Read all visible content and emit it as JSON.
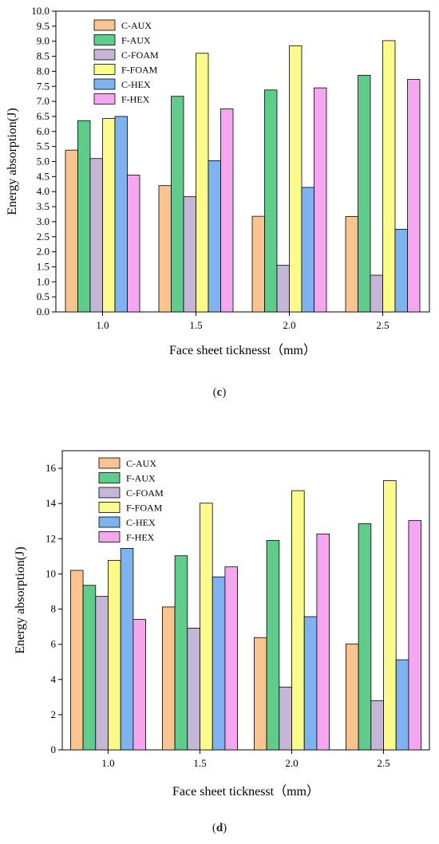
{
  "chart_data": [
    {
      "type": "bar",
      "categories": [
        "1.0",
        "1.5",
        "2.0",
        "2.5"
      ],
      "xlabel": "Face sheet ticknesst（mm）",
      "ylabel": "Energy absorption(J)",
      "ylim": [
        0,
        10
      ],
      "ytick_step": 0.5,
      "ytick_decimals": 1,
      "legend_position": "top-left",
      "series": [
        {
          "name": "C-AUX",
          "color": "#f9c48f",
          "values": [
            5.38,
            4.2,
            3.18,
            3.17
          ]
        },
        {
          "name": "F-AUX",
          "color": "#5fcc8c",
          "values": [
            6.36,
            7.17,
            7.38,
            7.87
          ]
        },
        {
          "name": "C-FOAM",
          "color": "#c5b6d8",
          "values": [
            5.1,
            3.83,
            1.55,
            1.22
          ]
        },
        {
          "name": "F-FOAM",
          "color": "#fbfb8c",
          "values": [
            6.43,
            8.6,
            8.85,
            9.02
          ]
        },
        {
          "name": "C-HEX",
          "color": "#7fb3f0",
          "values": [
            6.5,
            5.03,
            4.14,
            2.75
          ]
        },
        {
          "name": "F-HEX",
          "color": "#f4a6ee",
          "values": [
            4.55,
            6.75,
            7.45,
            7.73
          ]
        }
      ],
      "caption_open": "(",
      "caption_letter": "c",
      "caption_close": ")"
    },
    {
      "type": "bar",
      "categories": [
        "1.0",
        "1.5",
        "2.0",
        "2.5"
      ],
      "xlabel": "Face sheet ticknesst（mm）",
      "ylabel": "Energy absorption(J)",
      "ylim": [
        0,
        17
      ],
      "ytick_step": 2,
      "ytick_decimals": 0,
      "legend_position": "top-left",
      "series": [
        {
          "name": "C-AUX",
          "color": "#f9c48f",
          "values": [
            10.2,
            8.12,
            6.38,
            6.02
          ]
        },
        {
          "name": "F-AUX",
          "color": "#5fcc8c",
          "values": [
            9.35,
            11.03,
            11.9,
            12.85
          ]
        },
        {
          "name": "C-FOAM",
          "color": "#c5b6d8",
          "values": [
            8.72,
            6.92,
            3.57,
            2.8
          ]
        },
        {
          "name": "F-FOAM",
          "color": "#fbfb8c",
          "values": [
            10.77,
            14.02,
            14.73,
            15.3
          ]
        },
        {
          "name": "C-HEX",
          "color": "#7fb3f0",
          "values": [
            11.45,
            9.83,
            7.57,
            5.12
          ]
        },
        {
          "name": "F-HEX",
          "color": "#f4a6ee",
          "values": [
            7.42,
            10.4,
            12.27,
            13.03
          ]
        }
      ],
      "caption_open": "(",
      "caption_letter": "d",
      "caption_close": ")"
    }
  ]
}
